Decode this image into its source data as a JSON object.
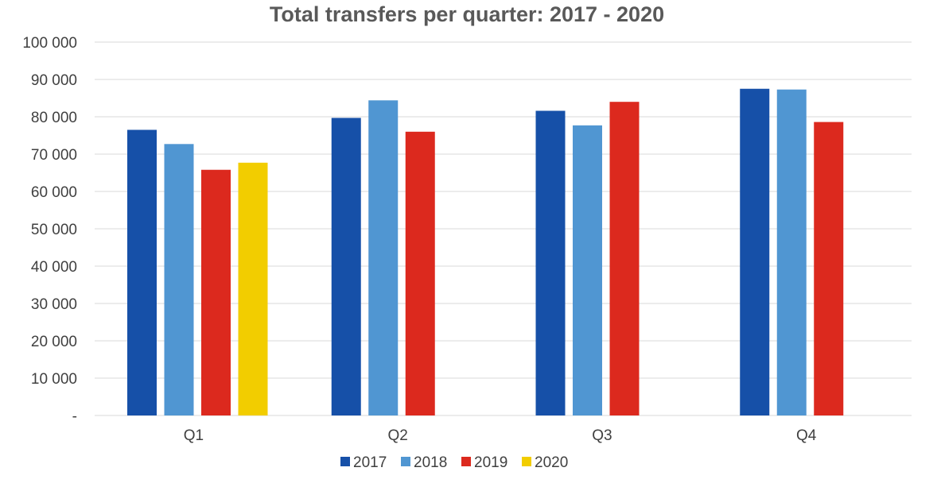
{
  "chart_data": {
    "type": "bar",
    "title": "Total transfers per quarter: 2017 - 2020",
    "xlabel": "",
    "ylabel": "",
    "categories": [
      "Q1",
      "Q2",
      "Q3",
      "Q4"
    ],
    "ylim": [
      0,
      100000
    ],
    "yticks": [
      0,
      10000,
      20000,
      30000,
      40000,
      50000,
      60000,
      70000,
      80000,
      90000,
      100000
    ],
    "ytick_labels": [
      "-",
      "10 000",
      "20 000",
      "30 000",
      "40 000",
      "50 000",
      "60 000",
      "70 000",
      "80 000",
      "90 000",
      "100 000"
    ],
    "grid": true,
    "legend_position": "bottom",
    "series": [
      {
        "name": "2017",
        "color": "#1650A8",
        "values": [
          76500,
          79700,
          81600,
          87500
        ]
      },
      {
        "name": "2018",
        "color": "#5096D2",
        "values": [
          72700,
          84400,
          77700,
          87300
        ]
      },
      {
        "name": "2019",
        "color": "#DC291E",
        "values": [
          65800,
          76000,
          84000,
          78600
        ]
      },
      {
        "name": "2020",
        "color": "#F2CD00",
        "values": [
          67700,
          null,
          null,
          null
        ]
      }
    ]
  }
}
